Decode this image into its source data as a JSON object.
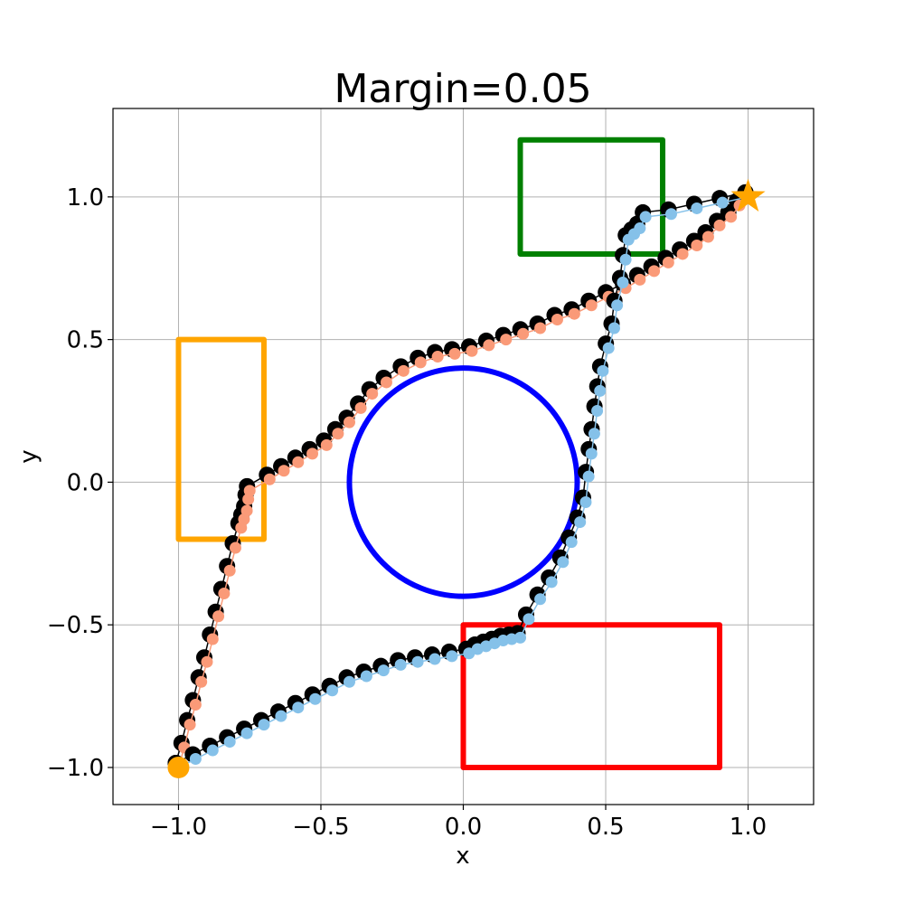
{
  "chart_data": {
    "type": "scatter",
    "title": "Margin=0.05",
    "xlabel": "x",
    "ylabel": "y",
    "xlim": [
      -1.23,
      1.23
    ],
    "ylim": [
      -1.13,
      1.31
    ],
    "grid": true,
    "xticks": [
      -1.0,
      -0.5,
      0.0,
      0.5,
      1.0
    ],
    "yticks": [
      -1.0,
      -0.5,
      0.0,
      0.5,
      1.0
    ],
    "xtick_labels": [
      "−1.0",
      "−0.5",
      "0.0",
      "0.5",
      "1.0"
    ],
    "ytick_labels": [
      "−1.0",
      "−0.5",
      "0.0",
      "0.5",
      "1.0"
    ],
    "start": {
      "x": -1.0,
      "y": -1.0,
      "color": "#FFA500",
      "marker": "circle"
    },
    "goal": {
      "x": 1.0,
      "y": 1.0,
      "color": "#FFA500",
      "marker": "star"
    },
    "obstacles": [
      {
        "kind": "circle",
        "cx": 0.0,
        "cy": 0.0,
        "r": 0.4,
        "color": "#0000FF"
      },
      {
        "kind": "rect",
        "x0": -1.0,
        "y0": -0.2,
        "x1": -0.7,
        "y1": 0.5,
        "color": "#FFA500"
      },
      {
        "kind": "rect",
        "x0": 0.2,
        "y0": 0.8,
        "x1": 0.7,
        "y1": 1.2,
        "color": "#008000"
      },
      {
        "kind": "rect",
        "x0": 0.0,
        "y0": -1.0,
        "x1": 0.9,
        "y1": -0.5,
        "color": "#FF0000"
      }
    ],
    "series": [
      {
        "color": "#FA9A78",
        "shadow_color": "#000000",
        "points": [
          [
            -1.0,
            -1.0
          ],
          [
            -0.98,
            -0.93
          ],
          [
            -0.96,
            -0.85
          ],
          [
            -0.94,
            -0.78
          ],
          [
            -0.92,
            -0.7
          ],
          [
            -0.9,
            -0.63
          ],
          [
            -0.88,
            -0.55
          ],
          [
            -0.86,
            -0.47
          ],
          [
            -0.84,
            -0.39
          ],
          [
            -0.82,
            -0.31
          ],
          [
            -0.8,
            -0.23
          ],
          [
            -0.78,
            -0.16
          ],
          [
            -0.77,
            -0.13
          ],
          [
            -0.76,
            -0.1
          ],
          [
            -0.755,
            -0.06
          ],
          [
            -0.75,
            -0.03
          ],
          [
            -0.68,
            0.01
          ],
          [
            -0.63,
            0.04
          ],
          [
            -0.58,
            0.07
          ],
          [
            -0.53,
            0.1
          ],
          [
            -0.48,
            0.13
          ],
          [
            -0.44,
            0.17
          ],
          [
            -0.4,
            0.21
          ],
          [
            -0.36,
            0.26
          ],
          [
            -0.32,
            0.31
          ],
          [
            -0.27,
            0.35
          ],
          [
            -0.21,
            0.39
          ],
          [
            -0.15,
            0.42
          ],
          [
            -0.09,
            0.44
          ],
          [
            -0.03,
            0.45
          ],
          [
            0.03,
            0.46
          ],
          [
            0.09,
            0.48
          ],
          [
            0.15,
            0.5
          ],
          [
            0.21,
            0.52
          ],
          [
            0.27,
            0.54
          ],
          [
            0.33,
            0.57
          ],
          [
            0.39,
            0.59
          ],
          [
            0.45,
            0.62
          ],
          [
            0.51,
            0.65
          ],
          [
            0.57,
            0.68
          ],
          [
            0.62,
            0.71
          ],
          [
            0.67,
            0.74
          ],
          [
            0.72,
            0.77
          ],
          [
            0.77,
            0.8
          ],
          [
            0.82,
            0.83
          ],
          [
            0.86,
            0.86
          ],
          [
            0.9,
            0.9
          ],
          [
            0.94,
            0.93
          ],
          [
            0.97,
            0.97
          ],
          [
            1.0,
            1.0
          ]
        ]
      },
      {
        "color": "#85C1E9",
        "shadow_color": "#000000",
        "points": [
          [
            -1.0,
            -1.0
          ],
          [
            -0.94,
            -0.97
          ],
          [
            -0.88,
            -0.94
          ],
          [
            -0.82,
            -0.91
          ],
          [
            -0.76,
            -0.88
          ],
          [
            -0.7,
            -0.85
          ],
          [
            -0.64,
            -0.82
          ],
          [
            -0.58,
            -0.79
          ],
          [
            -0.52,
            -0.76
          ],
          [
            -0.46,
            -0.73
          ],
          [
            -0.4,
            -0.7
          ],
          [
            -0.34,
            -0.68
          ],
          [
            -0.28,
            -0.66
          ],
          [
            -0.22,
            -0.64
          ],
          [
            -0.16,
            -0.63
          ],
          [
            -0.1,
            -0.62
          ],
          [
            -0.04,
            -0.61
          ],
          [
            0.02,
            -0.6
          ],
          [
            0.05,
            -0.585
          ],
          [
            0.08,
            -0.575
          ],
          [
            0.11,
            -0.565
          ],
          [
            0.14,
            -0.555
          ],
          [
            0.17,
            -0.55
          ],
          [
            0.2,
            -0.545
          ],
          [
            0.23,
            -0.48
          ],
          [
            0.27,
            -0.41
          ],
          [
            0.31,
            -0.35
          ],
          [
            0.35,
            -0.28
          ],
          [
            0.38,
            -0.21
          ],
          [
            0.41,
            -0.14
          ],
          [
            0.43,
            -0.07
          ],
          [
            0.44,
            0.02
          ],
          [
            0.45,
            0.1
          ],
          [
            0.46,
            0.17
          ],
          [
            0.47,
            0.25
          ],
          [
            0.48,
            0.32
          ],
          [
            0.49,
            0.39
          ],
          [
            0.51,
            0.47
          ],
          [
            0.53,
            0.54
          ],
          [
            0.54,
            0.62
          ],
          [
            0.56,
            0.7
          ],
          [
            0.57,
            0.78
          ],
          [
            0.58,
            0.85
          ],
          [
            0.6,
            0.87
          ],
          [
            0.62,
            0.89
          ],
          [
            0.64,
            0.93
          ],
          [
            0.73,
            0.94
          ],
          [
            0.82,
            0.96
          ],
          [
            0.91,
            0.98
          ],
          [
            1.0,
            1.0
          ]
        ]
      }
    ]
  }
}
